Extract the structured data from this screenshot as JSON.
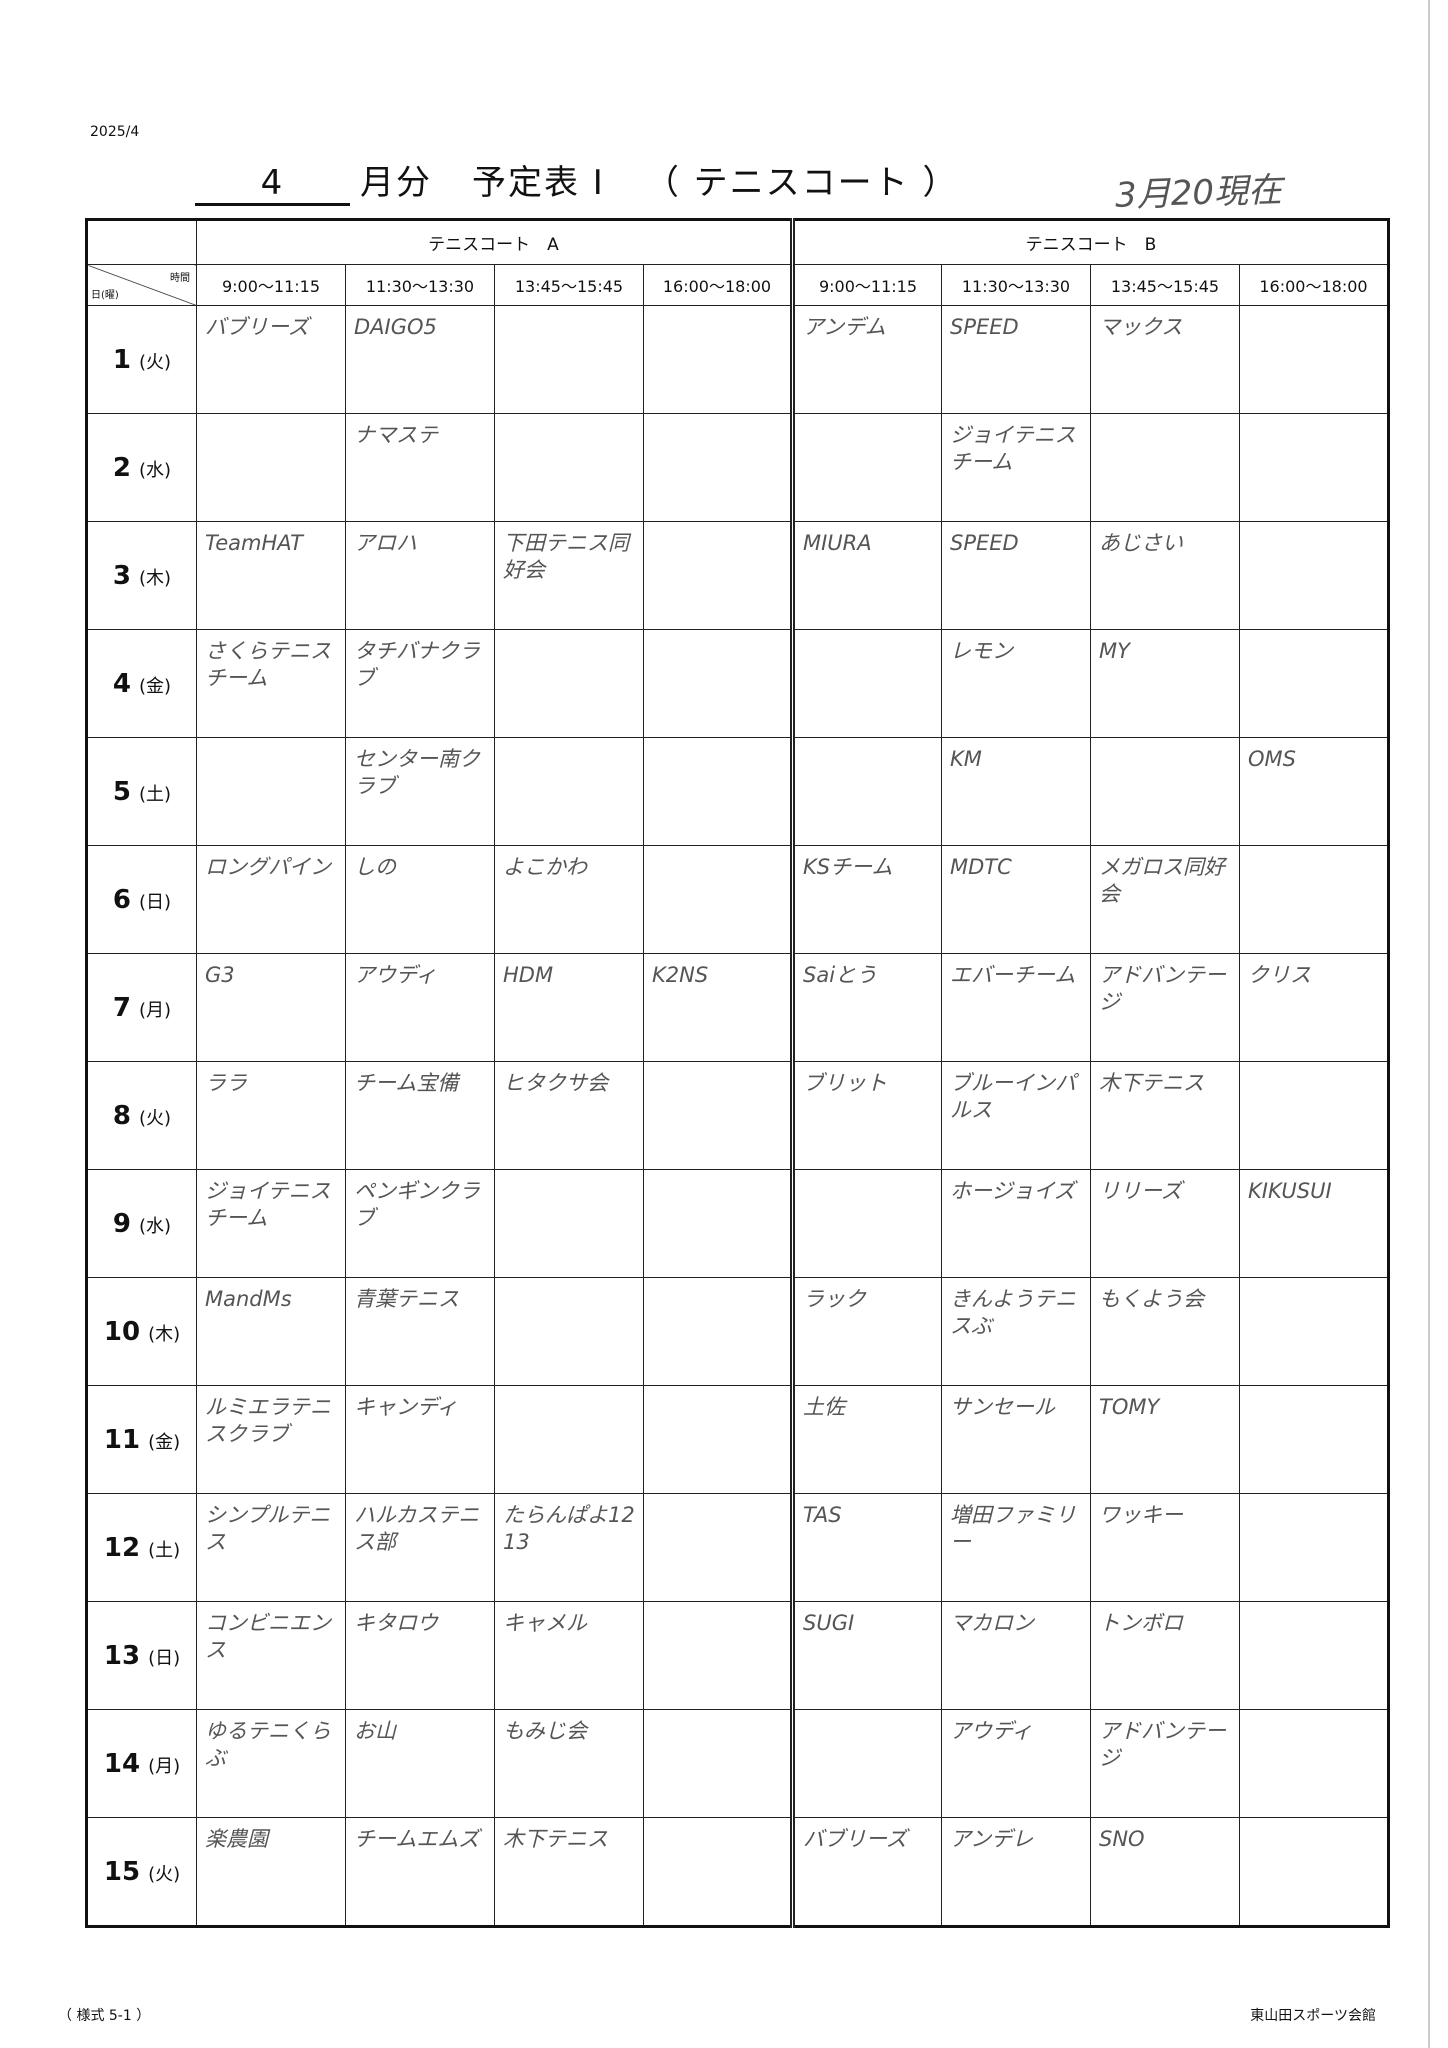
{
  "header": {
    "date": "2025/4",
    "month": "4",
    "month_suffix": "月分",
    "schedule": "予定表 Ⅰ",
    "facility": "（ テニスコート ）",
    "as_of": "3月20現在"
  },
  "courts": [
    "テニスコート　A",
    "テニスコート　B"
  ],
  "corner": {
    "time": "時間",
    "day": "日(曜)"
  },
  "slots": [
    "9:00～11:15",
    "11:30～13:30",
    "13:45～15:45",
    "16:00～18:00",
    "9:00～11:15",
    "11:30～13:30",
    "13:45～15:45",
    "16:00～18:00"
  ],
  "rows": [
    {
      "day": "1",
      "weekday": "(火)",
      "cells": [
        "バブリーズ",
        "DAIGO5",
        "",
        "",
        "アンデム",
        "SPEED",
        "マックス",
        ""
      ]
    },
    {
      "day": "2",
      "weekday": "(水)",
      "cells": [
        "",
        "ナマステ",
        "",
        "",
        "",
        "ジョイテニスチーム",
        "",
        ""
      ]
    },
    {
      "day": "3",
      "weekday": "(木)",
      "cells": [
        "TeamHAT",
        "アロハ",
        "下田テニス同好会",
        "",
        "MIURA",
        "SPEED",
        "あじさい",
        ""
      ]
    },
    {
      "day": "4",
      "weekday": "(金)",
      "cells": [
        "さくらテニスチーム",
        "タチバナクラブ",
        "",
        "",
        "",
        "レモン",
        "MY",
        ""
      ]
    },
    {
      "day": "5",
      "weekday": "(土)",
      "cells": [
        "",
        "センター南クラブ",
        "",
        "",
        "",
        "KM",
        "",
        "OMS"
      ]
    },
    {
      "day": "6",
      "weekday": "(日)",
      "cells": [
        "ロングパイン",
        "しの",
        "よこかわ",
        "",
        "KSチーム",
        "MDTC",
        "メガロス同好会",
        ""
      ]
    },
    {
      "day": "7",
      "weekday": "(月)",
      "cells": [
        "G3",
        "アウディ",
        "HDM",
        "K2NS",
        "Saiとう",
        "エバーチーム",
        "アドバンテージ",
        "クリス"
      ]
    },
    {
      "day": "8",
      "weekday": "(火)",
      "cells": [
        "ララ",
        "チーム宝備",
        "ヒタクサ会",
        "",
        "ブリット",
        "ブルーインパルス",
        "木下テニス",
        ""
      ]
    },
    {
      "day": "9",
      "weekday": "(水)",
      "cells": [
        "ジョイテニスチーム",
        "ペンギンクラブ",
        "",
        "",
        "",
        "ホージョイズ",
        "リリーズ",
        "KIKUSUI"
      ]
    },
    {
      "day": "10",
      "weekday": "(木)",
      "cells": [
        "MandMs",
        "青葉テニス",
        "",
        "",
        "ラック",
        "きんようテニスぶ",
        "もくよう会",
        ""
      ]
    },
    {
      "day": "11",
      "weekday": "(金)",
      "cells": [
        "ルミエラテニスクラブ",
        "キャンディ",
        "",
        "",
        "土佐",
        "サンセール",
        "TOMY",
        ""
      ]
    },
    {
      "day": "12",
      "weekday": "(土)",
      "cells": [
        "シンプルテニス",
        "ハルカステニス部",
        "たらんぱよ1213",
        "",
        "TAS",
        "増田ファミリー",
        "ワッキー",
        ""
      ]
    },
    {
      "day": "13",
      "weekday": "(日)",
      "cells": [
        "コンビニエンス",
        "キタロウ",
        "キャメル",
        "",
        "SUGI",
        "マカロン",
        "トンボロ",
        ""
      ]
    },
    {
      "day": "14",
      "weekday": "(月)",
      "cells": [
        "ゆるテニくらぶ",
        "お山",
        "もみじ会",
        "",
        "",
        "アウディ",
        "アドバンテージ",
        ""
      ]
    },
    {
      "day": "15",
      "weekday": "(火)",
      "cells": [
        "楽農園",
        "チームエムズ",
        "木下テニス",
        "",
        "バブリーズ",
        "アンデレ",
        "SNO",
        ""
      ]
    }
  ],
  "footer": {
    "form": "（ 様式 5-1 ）",
    "org": "東山田スポーツ会館"
  }
}
